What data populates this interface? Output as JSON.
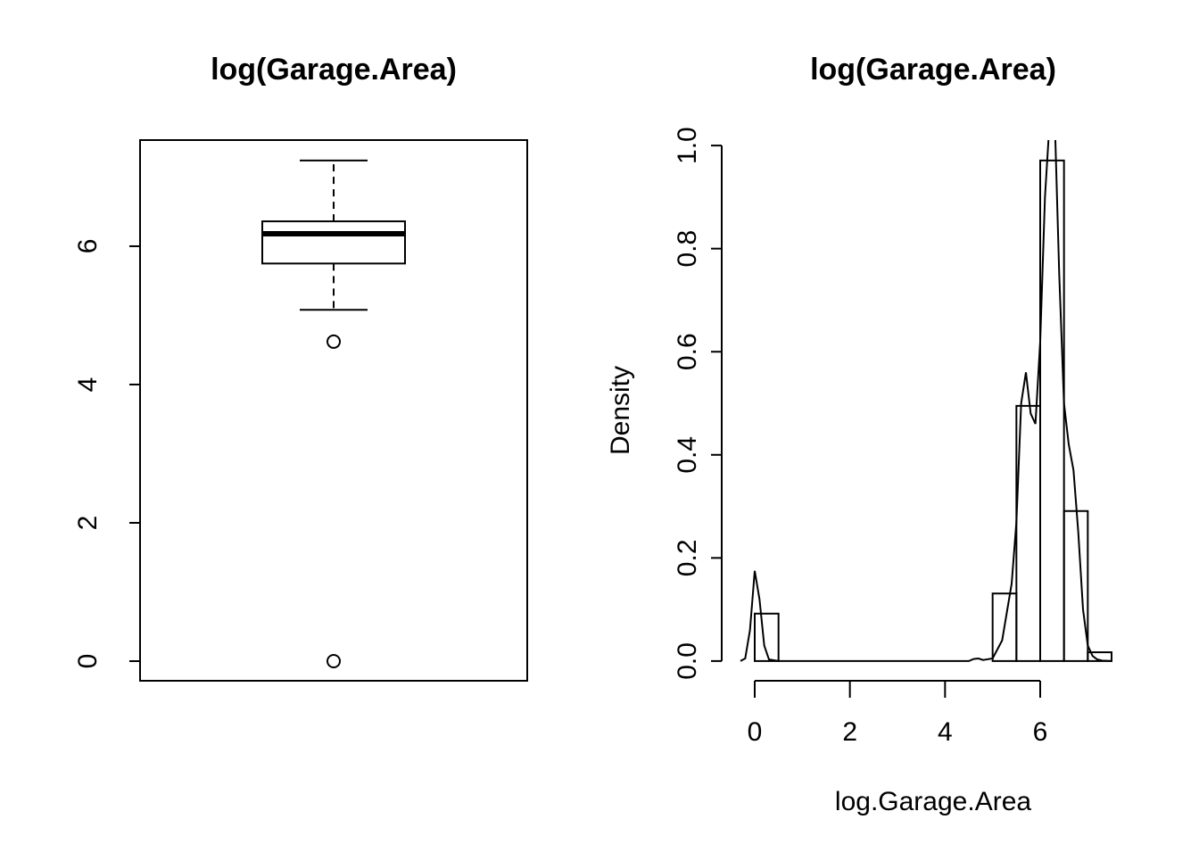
{
  "chart_data": [
    {
      "type": "box",
      "title": "log(Garage.Area)",
      "ylim": [
        -0.284,
        7.535
      ],
      "yticks": [
        0,
        2,
        4,
        6
      ],
      "box": {
        "whisker_low": 5.08,
        "q1": 5.75,
        "median": 6.18,
        "q3": 6.36,
        "whisker_high": 7.24,
        "outliers": [
          4.62,
          0
        ]
      }
    },
    {
      "type": "histogram",
      "title": "log(Garage.Area)",
      "xlabel": "log.Garage.Area",
      "ylabel": "Density",
      "bins": [
        0,
        0.5,
        1,
        1.5,
        2,
        2.5,
        3,
        3.5,
        4,
        4.5,
        5,
        5.5,
        6,
        6.5,
        7,
        7.5
      ],
      "values": [
        0.092,
        0,
        0,
        0,
        0,
        0,
        0,
        0,
        0,
        0,
        0.131,
        0.495,
        0.971,
        0.291,
        0.017
      ],
      "xlim": [
        -0.3,
        7.8
      ],
      "ylim": [
        -0.04,
        1.04
      ],
      "xticks": [
        0,
        2,
        4,
        6
      ],
      "yticks": [
        {
          "value": 0,
          "label": "0.0"
        },
        {
          "value": 0.2,
          "label": "0.2"
        },
        {
          "value": 0.4,
          "label": "0.4"
        },
        {
          "value": 0.6,
          "label": "0.6"
        },
        {
          "value": 0.8,
          "label": "0.8"
        },
        {
          "value": 1,
          "label": "1.0"
        }
      ],
      "density": {
        "x": [
          -0.3,
          -0.2,
          -0.1,
          0,
          0.1,
          0.2,
          0.3,
          0.5,
          1,
          2,
          3,
          4,
          4.5,
          4.6,
          4.7,
          4.8,
          5,
          5.2,
          5.4,
          5.5,
          5.6,
          5.7,
          5.8,
          5.9,
          6,
          6.1,
          6.2,
          6.3,
          6.4,
          6.5,
          6.6,
          6.7,
          6.8,
          6.9,
          7,
          7.1,
          7.2,
          7.3,
          7.5
        ],
        "y": [
          0,
          0.005,
          0.06,
          0.175,
          0.12,
          0.03,
          0.003,
          0,
          0,
          0,
          0,
          0,
          0,
          0.004,
          0.005,
          0.002,
          0.005,
          0.04,
          0.15,
          0.27,
          0.5,
          0.56,
          0.48,
          0.46,
          0.62,
          0.9,
          1.05,
          1.07,
          0.75,
          0.5,
          0.42,
          0.37,
          0.25,
          0.1,
          0.03,
          0.01,
          0.003,
          0.001,
          0
        ]
      }
    }
  ]
}
